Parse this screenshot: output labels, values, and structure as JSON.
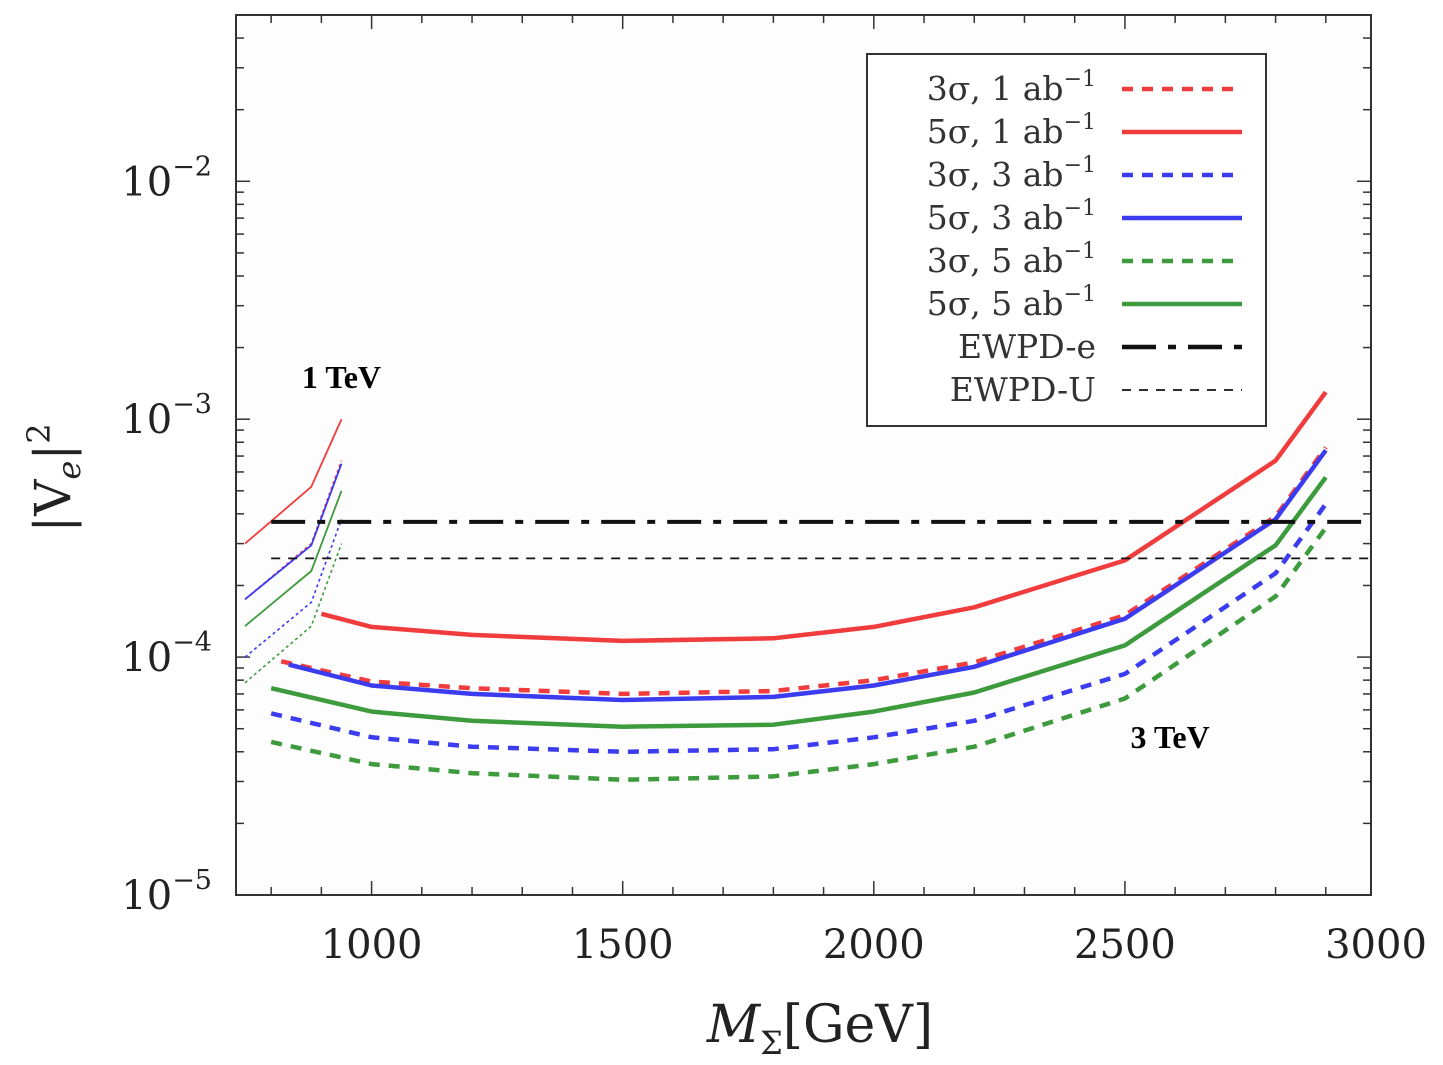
{
  "chart_data": {
    "type": "line",
    "title": "",
    "xlabel": "M_Σ[GeV]",
    "xlabel_main": "M",
    "xlabel_sub": "Σ",
    "xlabel_unit": "[GeV]",
    "ylabel": "|V_e|^2",
    "ylabel_left": "|V",
    "ylabel_sub": "e",
    "ylabel_right": "|",
    "ylabel_sup": "2",
    "xlim": [
      730,
      2990
    ],
    "ylim": [
      1e-05,
      0.05
    ],
    "yscale": "log",
    "x_ticks": [
      {
        "value": 1000,
        "label": "1000"
      },
      {
        "value": 1500,
        "label": "1500"
      },
      {
        "value": 2000,
        "label": "2000"
      },
      {
        "value": 2500,
        "label": "2500"
      },
      {
        "value": 3000,
        "label": "3000"
      }
    ],
    "y_ticks": [
      {
        "value": 1e-05,
        "base": "10",
        "exp": "−5"
      },
      {
        "value": 0.0001,
        "base": "10",
        "exp": "−4"
      },
      {
        "value": 0.001,
        "base": "10",
        "exp": "−3"
      },
      {
        "value": 0.01,
        "base": "10",
        "exp": "−2"
      }
    ],
    "legend_position": "top-right",
    "series": [
      {
        "name": "3σ, 1 ab⁻¹",
        "sigma": "3σ, 1 ab",
        "sup": "−1",
        "color": "#f03c3c",
        "style": "dotted",
        "x": [
          820,
          1000,
          1200,
          1500,
          1800,
          2000,
          2200,
          2500,
          2800,
          2900
        ],
        "y": [
          9.6e-05,
          7.9e-05,
          7.4e-05,
          7e-05,
          7.2e-05,
          8e-05,
          9.5e-05,
          0.00015,
          0.00039,
          0.00076
        ]
      },
      {
        "name": "5σ, 1 ab⁻¹",
        "sigma": "5σ, 1 ab",
        "sup": "−1",
        "color": "#f03c3c",
        "style": "solid",
        "x": [
          900,
          1000,
          1200,
          1500,
          1800,
          2000,
          2200,
          2500,
          2800,
          2900
        ],
        "y": [
          0.000152,
          0.000134,
          0.000124,
          0.000117,
          0.00012,
          0.000134,
          0.000162,
          0.000255,
          0.00067,
          0.0013
        ]
      },
      {
        "name": "3σ, 3 ab⁻¹",
        "sigma": "3σ, 3 ab",
        "sup": "−1",
        "color": "#3b3bf0",
        "style": "dotted",
        "x": [
          800,
          1000,
          1200,
          1500,
          1800,
          2000,
          2200,
          2500,
          2800,
          2900
        ],
        "y": [
          5.8e-05,
          4.6e-05,
          4.2e-05,
          4e-05,
          4.1e-05,
          4.6e-05,
          5.4e-05,
          8.5e-05,
          0.000225,
          0.00044
        ]
      },
      {
        "name": "5σ, 3 ab⁻¹",
        "sigma": "5σ, 3 ab",
        "sup": "−1",
        "color": "#3b3bf0",
        "style": "solid",
        "x": [
          835,
          1000,
          1200,
          1500,
          1800,
          2000,
          2200,
          2500,
          2800,
          2900
        ],
        "y": [
          9.3e-05,
          7.6e-05,
          7e-05,
          6.6e-05,
          6.8e-05,
          7.6e-05,
          9.1e-05,
          0.000145,
          0.00038,
          0.00074
        ]
      },
      {
        "name": "3σ, 5 ab⁻¹",
        "sigma": "3σ, 5 ab",
        "sup": "−1",
        "color": "#3d9a3d",
        "style": "dotted",
        "x": [
          800,
          1000,
          1200,
          1500,
          1800,
          2000,
          2200,
          2500,
          2800,
          2900
        ],
        "y": [
          4.4e-05,
          3.55e-05,
          3.25e-05,
          3.05e-05,
          3.15e-05,
          3.55e-05,
          4.2e-05,
          6.7e-05,
          0.00018,
          0.00035
        ]
      },
      {
        "name": "5σ, 5 ab⁻¹",
        "sigma": "5σ, 5 ab",
        "sup": "−1",
        "color": "#3d9a3d",
        "style": "solid",
        "x": [
          800,
          1000,
          1200,
          1500,
          1800,
          2000,
          2200,
          2500,
          2800,
          2900
        ],
        "y": [
          7.4e-05,
          5.9e-05,
          5.4e-05,
          5.1e-05,
          5.2e-05,
          5.9e-05,
          7.1e-05,
          0.000112,
          0.000295,
          0.00057
        ]
      },
      {
        "name": "EWPD-e",
        "color": "#111111",
        "style": "dashdot",
        "x": [
          800,
          2990
        ],
        "y": [
          0.00037,
          0.00037
        ]
      },
      {
        "name": "EWPD-U",
        "color": "#111111",
        "style": "thindash",
        "x": [
          800,
          2990
        ],
        "y": [
          0.00026,
          0.00026
        ]
      }
    ],
    "inset_1tev": [
      {
        "color": "#f03c3c",
        "style": "thin-solid",
        "x": [
          748,
          880,
          940
        ],
        "y": [
          0.0003,
          0.00052,
          0.001
        ]
      },
      {
        "color": "#f03c3c",
        "style": "thin-dotted",
        "x": [
          748,
          880,
          940
        ],
        "y": [
          0.000175,
          0.0003,
          0.00067
        ]
      },
      {
        "color": "#3b3bf0",
        "style": "thin-solid",
        "x": [
          748,
          880,
          940
        ],
        "y": [
          0.000175,
          0.000295,
          0.00065
        ]
      },
      {
        "color": "#3b3bf0",
        "style": "thin-dotted",
        "x": [
          748,
          880,
          940
        ],
        "y": [
          0.0001,
          0.00017,
          0.00038
        ]
      },
      {
        "color": "#3d9a3d",
        "style": "thin-solid",
        "x": [
          748,
          880,
          940
        ],
        "y": [
          0.000135,
          0.00023,
          0.0005
        ]
      },
      {
        "color": "#3d9a3d",
        "style": "thin-dotted",
        "x": [
          748,
          880,
          940
        ],
        "y": [
          7.8e-05,
          0.000135,
          0.0003
        ]
      }
    ],
    "annotations": [
      {
        "text": "1 TeV",
        "x": 940,
        "y": 0.00135
      },
      {
        "text": "3 TeV",
        "x": 2590,
        "y": 4.15e-05
      }
    ]
  }
}
